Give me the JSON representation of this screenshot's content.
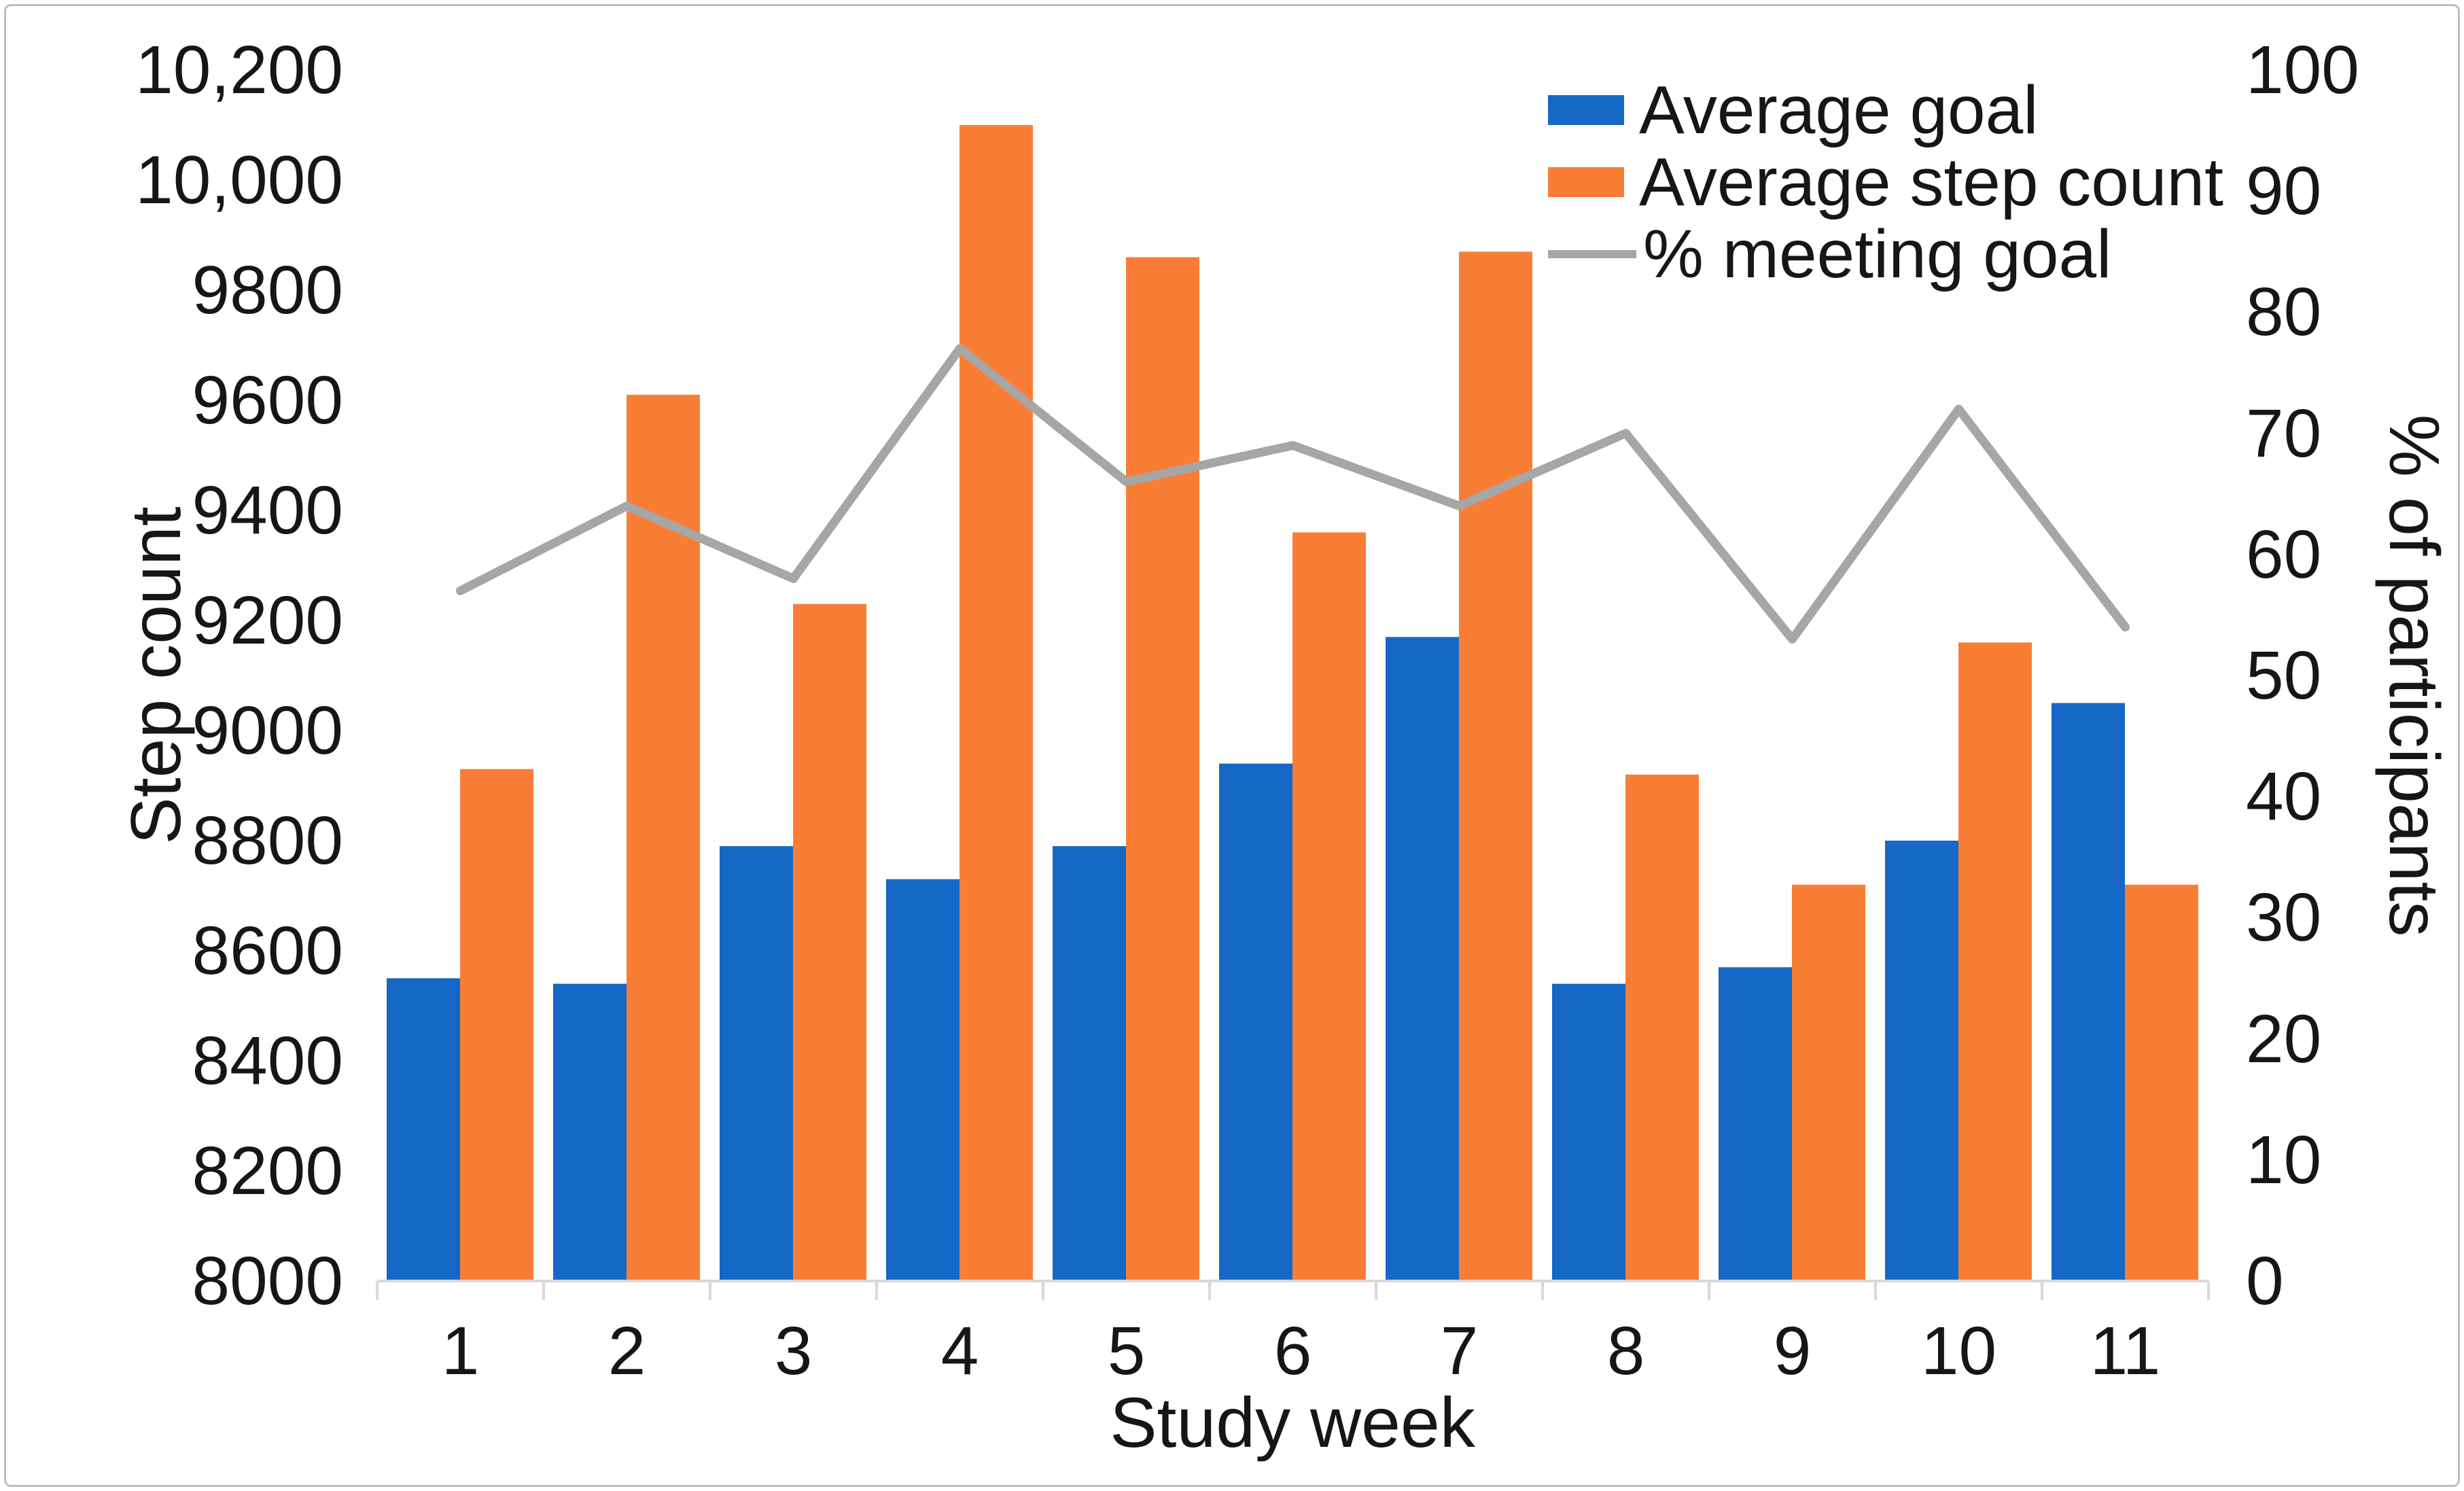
{
  "figure": {
    "background": "#ffffff",
    "border_color": "#bfbfbf"
  },
  "chart_data": {
    "type": "combo-bar-line",
    "title": "",
    "categories": [
      "1",
      "2",
      "3",
      "4",
      "5",
      "6",
      "7",
      "8",
      "9",
      "10",
      "11"
    ],
    "xlabel": "Study week",
    "left_axis": {
      "label": "Step count",
      "min": 8000,
      "max": 10200,
      "step": 200,
      "tick_labels": [
        "8000",
        "8200",
        "8400",
        "8600",
        "8800",
        "9000",
        "9200",
        "9400",
        "9600",
        "9800",
        "10,000",
        "10,200"
      ]
    },
    "right_axis": {
      "label": "% of participants",
      "min": 0,
      "max": 100,
      "step": 10,
      "tick_labels": [
        "0",
        "10",
        "20",
        "30",
        "40",
        "50",
        "60",
        "70",
        "80",
        "90",
        "100"
      ]
    },
    "series": [
      {
        "name": "Average goal",
        "type": "bar",
        "axis": "left",
        "color": "#1568C6",
        "values": [
          8550,
          8540,
          8790,
          8730,
          8790,
          8940,
          9170,
          8540,
          8570,
          8800,
          9050
        ]
      },
      {
        "name": "Average step count",
        "type": "bar",
        "axis": "left",
        "color": "#F97E35",
        "values": [
          8930,
          9610,
          9230,
          10100,
          9860,
          9360,
          9870,
          8920,
          8720,
          9160,
          8720
        ]
      },
      {
        "name": "% meeting goal",
        "type": "line",
        "axis": "right",
        "color": "#A6A6A6",
        "values": [
          57,
          64,
          58,
          77,
          66,
          69,
          64,
          70,
          53,
          72,
          54
        ]
      }
    ],
    "legend_position": "top-right",
    "grid": false,
    "axis_line_color": "#D9D9D9",
    "text_color": "#161616"
  }
}
